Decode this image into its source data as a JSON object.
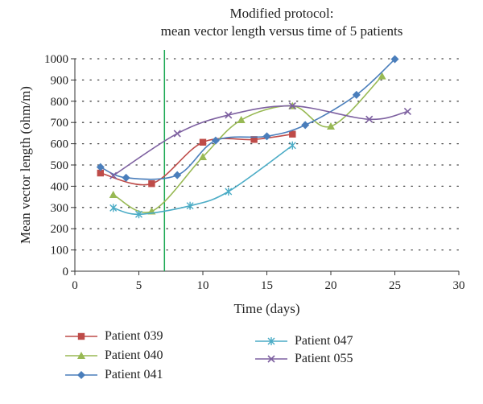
{
  "chart_data": {
    "type": "line",
    "title": [
      "Modified protocol:",
      "mean vector length versus time of 5 patients"
    ],
    "xlabel": "Time (days)",
    "ylabel": "Mean vector length (ohm/m)",
    "xlim": [
      0,
      30
    ],
    "ylim": [
      0,
      1000
    ],
    "xticks": [
      0,
      5,
      10,
      15,
      20,
      25,
      30
    ],
    "yticks": [
      0,
      100,
      200,
      300,
      400,
      500,
      600,
      700,
      800,
      900,
      1000
    ],
    "grid": "horizontal dotted",
    "legend_position": "bottom",
    "vertical_marker": {
      "x": 7,
      "color": "#19a852"
    },
    "series": [
      {
        "name": "Patient 039",
        "color": "#be4b48",
        "marker": "square",
        "x": [
          2,
          6,
          10,
          14,
          17
        ],
        "y": [
          462,
          412,
          607,
          620,
          645
        ]
      },
      {
        "name": "Patient 040",
        "color": "#98b954",
        "marker": "triangle",
        "x": [
          3,
          6,
          10,
          13,
          17,
          20,
          24
        ],
        "y": [
          360,
          282,
          538,
          712,
          778,
          682,
          918
        ]
      },
      {
        "name": "Patient 041",
        "color": "#4a7ebb",
        "marker": "diamond",
        "x": [
          2,
          4,
          8,
          11,
          15,
          18,
          22,
          25
        ],
        "y": [
          490,
          440,
          452,
          615,
          635,
          688,
          830,
          998
        ]
      },
      {
        "name": "Patient 047",
        "color": "#4bacc6",
        "marker": "asterisk",
        "x": [
          3,
          5,
          9,
          12,
          17
        ],
        "y": [
          298,
          268,
          308,
          375,
          592
        ]
      },
      {
        "name": "Patient 055",
        "color": "#7d60a0",
        "marker": "x",
        "x": [
          3,
          8,
          12,
          17,
          23,
          26
        ],
        "y": [
          450,
          648,
          735,
          778,
          715,
          752
        ]
      }
    ]
  }
}
